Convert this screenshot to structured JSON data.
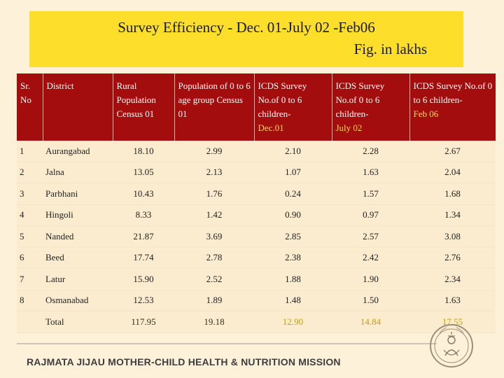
{
  "title": {
    "line1": "Survey Efficiency  - Dec. 01-July 02 -Feb06",
    "line2": "Fig. in lakhs"
  },
  "table": {
    "headers": {
      "sr": "Sr. No",
      "district": "District",
      "rural": "Rural Population Census 01",
      "pop06": "Population of 0 to 6 age group Census 01",
      "icds1_main": "ICDS Survey No.of 0 to 6 children-",
      "icds1_period": "Dec.01",
      "icds2_main": "ICDS Survey No.of 0 to 6 children-",
      "icds2_period": "July 02",
      "icds3_main": "ICDS Survey No.of 0 to 6 children-",
      "icds3_period": "Feb 06"
    },
    "rows": [
      {
        "sr": "1",
        "district": "Aurangabad",
        "rural": "18.10",
        "pop06": "2.99",
        "dec01": "2.10",
        "jul02": "2.28",
        "feb06": "2.67"
      },
      {
        "sr": "2",
        "district": "Jalna",
        "rural": "13.05",
        "pop06": "2.13",
        "dec01": "1.07",
        "jul02": "1.63",
        "feb06": "2.04"
      },
      {
        "sr": "3",
        "district": "Parbhani",
        "rural": "10.43",
        "pop06": "1.76",
        "dec01": "0.24",
        "jul02": "1.57",
        "feb06": "1.68"
      },
      {
        "sr": "4",
        "district": "Hingoli",
        "rural": "8.33",
        "pop06": "1.42",
        "dec01": "0.90",
        "jul02": "0.97",
        "feb06": "1.34"
      },
      {
        "sr": "5",
        "district": "Nanded",
        "rural": "21.87",
        "pop06": "3.69",
        "dec01": "2.85",
        "jul02": "2.57",
        "feb06": "3.08"
      },
      {
        "sr": "6",
        "district": "Beed",
        "rural": "17.74",
        "pop06": "2.78",
        "dec01": "2.38",
        "jul02": "2.42",
        "feb06": "2.76"
      },
      {
        "sr": "7",
        "district": "Latur",
        "rural": "15.90",
        "pop06": "2.52",
        "dec01": "1.88",
        "jul02": "1.90",
        "feb06": "2.34"
      },
      {
        "sr": "8",
        "district": "Osmanabad",
        "rural": "12.53",
        "pop06": "1.89",
        "dec01": "1.48",
        "jul02": "1.50",
        "feb06": "1.63"
      }
    ],
    "total": {
      "label": "Total",
      "rural": "117.95",
      "pop06": "19.18",
      "dec01": "12.90",
      "jul02": "14.84",
      "feb06": "17.55"
    }
  },
  "footer": "RAJMATA JIJAU MOTHER-CHILD HEALTH & NUTRITION MISSION",
  "colors": {
    "header_bg": "#a40d0d",
    "title_bg": "#fdde2a",
    "page_bg": "#fdf1da",
    "accent_yellow": "#ffd65a"
  },
  "icons": {
    "seal": "seal-emblem-icon"
  }
}
